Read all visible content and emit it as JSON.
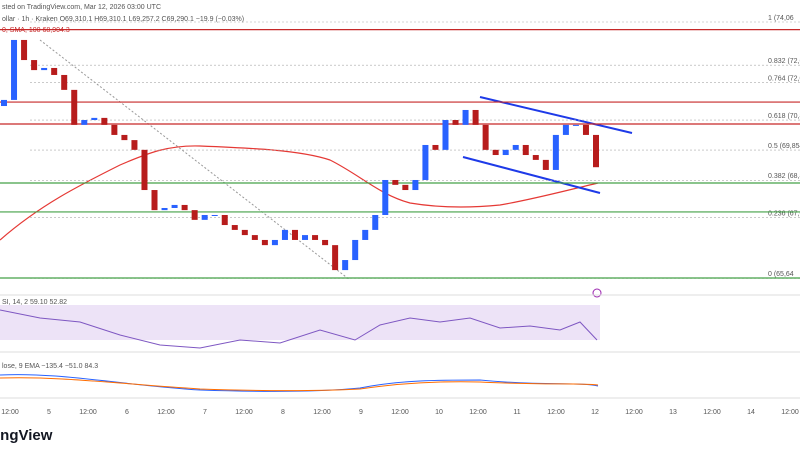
{
  "header": {
    "symbol_line": "ollar · 1h · Kraken  O69,310.1 H69,310.1 L69,257.2 C69,290.1 −19.9 (−0.03%)",
    "published": "sted on TradingView.com, Mar 12, 2026 03:00 UTC",
    "sma_label": "0, SMA, 100  68,904.3"
  },
  "chart_data": {
    "type": "candlestick",
    "open": [
      71300,
      71500,
      73470,
      72810,
      72480,
      72550,
      72320,
      71830,
      70680,
      70840,
      70910,
      70680,
      70350,
      70180,
      69860,
      68540,
      67880,
      67950,
      68050,
      67880,
      67560,
      67720,
      67720,
      67390,
      67230,
      67060,
      66900,
      66730,
      66900,
      67230,
      66900,
      67060,
      66900,
      66730,
      65910,
      66240,
      66900,
      67230,
      67720,
      68870,
      68710,
      68540,
      68870,
      70020,
      69860,
      70840,
      70680,
      71170,
      70680,
      69860,
      69690,
      69860,
      70020,
      69690,
      69530,
      69200,
      70350,
      70680,
      70680,
      70350
    ],
    "close": [
      71500,
      73470,
      72810,
      72480,
      72550,
      72320,
      71830,
      70680,
      70840,
      70910,
      70680,
      70350,
      70180,
      69860,
      68540,
      67880,
      67950,
      68050,
      67880,
      67560,
      67720,
      67720,
      67390,
      67230,
      67060,
      66900,
      66730,
      66900,
      67230,
      66900,
      67060,
      66900,
      66730,
      65910,
      66240,
      66900,
      67230,
      67720,
      68870,
      68710,
      68540,
      68870,
      70020,
      69860,
      70840,
      70680,
      71170,
      70680,
      69860,
      69690,
      69860,
      70020,
      69690,
      69530,
      69200,
      70350,
      70680,
      70680,
      70350,
      69290
    ],
    "up_color": "#2962ff",
    "down_color": "#b71c1c",
    "ylim": [
      65256,
      74060
    ],
    "levels": [
      {
        "value": 73810,
        "color": "#c62828"
      },
      {
        "value": 71430,
        "color": "#c62828"
      },
      {
        "value": 70710,
        "color": "#c62828"
      },
      {
        "value": 68770,
        "color": "#43a047"
      },
      {
        "value": 67820,
        "color": "#43a047"
      },
      {
        "value": 65650,
        "color": "#43a047"
      }
    ],
    "fib": [
      {
        "value": 74060,
        "label": "1 (74,06"
      },
      {
        "value": 72640,
        "label": "0.832 (72,64"
      },
      {
        "value": 72070,
        "label": "0.764 (72,07"
      },
      {
        "value": 70840,
        "label": "0.618 (70,84"
      },
      {
        "value": 69854,
        "label": "0.5 (69,854"
      },
      {
        "value": 68860,
        "label": "0.382 (68,86"
      },
      {
        "value": 67630,
        "label": "0.236 (67,63"
      },
      {
        "value": 65640,
        "label": "0 (65,64"
      }
    ],
    "x_labels": [
      "12:00",
      "5",
      "12:00",
      "6",
      "12:00",
      "7",
      "12:00",
      "8",
      "12:00",
      "9",
      "12:00",
      "10",
      "12:00",
      "11",
      "12:00",
      "12",
      "12:00",
      "13",
      "12:00",
      "14",
      "12:00"
    ]
  },
  "rsi_label": "SI, 14, 2  59.10  52.82",
  "macd_label": "lose, 9  EMA  −135.4  −51.0  84.3",
  "footer": "ingView"
}
